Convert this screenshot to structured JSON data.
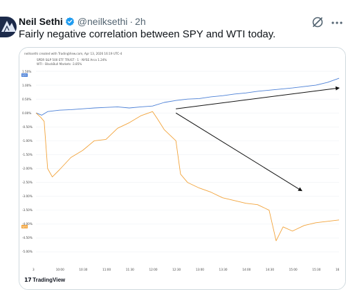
{
  "tweet": {
    "author_name": "Neil Sethi",
    "handle": "@neilksethi",
    "separator": "·",
    "time": "2h",
    "text": "Fairly negative correlation between SPY and WTI today."
  },
  "icons": [
    "verified-badge-icon",
    "grok-icon",
    "more-icon",
    "tradingview-logo-icon"
  ],
  "colors": {
    "spy": "#4a7fd6",
    "wti": "#f2a33a",
    "arrow": "#111111",
    "verified": "#1d9bf0"
  },
  "chart_image": {
    "watermark": "neilksethi created with TradingView.com, Apr 13, 2026 16:19 UTC-4",
    "legend_spy": "SPDR S&P 500 ETF TRUST · 1 · NYSE Arca 1.24%",
    "legend_wti": "WTI - BlackBull Markets -3.85%",
    "badge_spy": "SPY",
    "badge_wti": "WTI",
    "brand": "TradingView",
    "chart_data": {
      "type": "line",
      "x_ticks": [
        "3",
        "10:00",
        "10:30",
        "11:00",
        "11:30",
        "12:00",
        "12:30",
        "13:00",
        "13:30",
        "14:00",
        "14:30",
        "15:00",
        "15:30",
        "16"
      ],
      "y_ticks": [
        "1.50%",
        "1.00%",
        "0.50%",
        "0.00%",
        "-0.50%",
        "-1.00%",
        "-1.50%",
        "-2.00%",
        "-2.50%",
        "-3.00%",
        "-3.50%",
        "-4.00%",
        "-4.50%",
        "-5.00%"
      ],
      "ylim": [
        -5.25,
        1.6
      ],
      "series": [
        {
          "name": "SPDR S&P 500 ETF TRUST",
          "x": [
            0,
            0.25,
            0.5,
            1,
            1.5,
            2,
            2.5,
            3,
            3.5,
            4,
            4.5,
            5,
            5.5,
            6,
            6.5,
            7,
            7.5,
            8,
            8.5,
            9,
            9.5,
            10,
            10.5,
            11,
            11.5,
            12,
            12.5,
            13
          ],
          "values": [
            0.0,
            -0.08,
            0.05,
            0.1,
            0.12,
            0.15,
            0.18,
            0.2,
            0.22,
            0.18,
            0.22,
            0.25,
            0.38,
            0.45,
            0.5,
            0.52,
            0.58,
            0.62,
            0.68,
            0.72,
            0.78,
            0.82,
            0.86,
            0.9,
            0.95,
            1.0,
            1.1,
            1.25
          ]
        },
        {
          "name": "WTI",
          "x": [
            0,
            0.2,
            0.35,
            0.5,
            0.7,
            1,
            1.5,
            2,
            2.5,
            3,
            3.5,
            4,
            4.5,
            5,
            5.2,
            5.5,
            6,
            6.2,
            6.5,
            7,
            7.5,
            8,
            8.5,
            9,
            9.5,
            10,
            10.3,
            10.6,
            11,
            11.5,
            12,
            12.5,
            13
          ],
          "values": [
            0.0,
            -0.15,
            -0.3,
            -2.0,
            -2.3,
            -2.05,
            -1.6,
            -1.35,
            -1.0,
            -0.95,
            -0.55,
            -0.35,
            -0.1,
            0.05,
            -0.2,
            -0.6,
            -1.0,
            -2.2,
            -2.5,
            -2.7,
            -2.85,
            -3.05,
            -3.15,
            -3.25,
            -3.3,
            -3.5,
            -4.6,
            -4.1,
            -4.25,
            -4.05,
            -3.95,
            -3.9,
            -3.85
          ]
        }
      ],
      "annotations": [
        "arrow from 12:00 0.15% to 16:00 0.90%",
        "arrow from 12:00 0.00% to 14:50 -2.80%"
      ]
    }
  }
}
